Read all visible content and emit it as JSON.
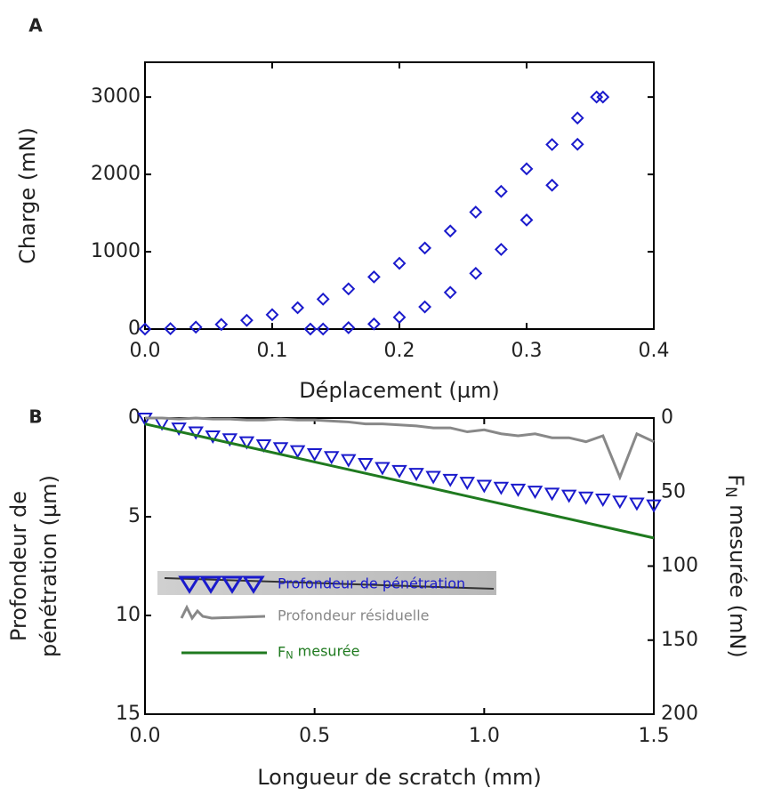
{
  "chart_data": [
    {
      "type": "scatter",
      "panel": "A",
      "x_label": "Déplacement (µm)",
      "y_label": "Charge (mN)",
      "xlim": [
        0,
        0.4
      ],
      "ylim": [
        0,
        3450
      ],
      "xticks": [
        {
          "value": 0,
          "label": "0.0"
        },
        0.1,
        0.2,
        0.3,
        0.4
      ],
      "yticks": [
        0,
        1000,
        2000,
        3000
      ],
      "series": [
        {
          "color": "#1a1acc",
          "marker": "diamond",
          "x": [
            0,
            0.02,
            0.04,
            0.06,
            0.08,
            0.1,
            0.12,
            0.14,
            0.16,
            0.18,
            0.2,
            0.22,
            0.24,
            0.26,
            0.28,
            0.3,
            0.32,
            0.34,
            0.355
          ],
          "values": [
            0,
            5,
            25,
            60,
            113,
            186,
            276,
            387,
            520,
            674,
            850,
            1048,
            1268,
            1512,
            1780,
            2072,
            2386,
            2729,
            3000
          ]
        },
        {
          "color": "#1a1acc",
          "marker": "diamond",
          "x": [
            0.36,
            0.34,
            0.32,
            0.3,
            0.28,
            0.26,
            0.24,
            0.22,
            0.2,
            0.18,
            0.16,
            0.14,
            0.13
          ],
          "values": [
            3000,
            2389,
            1860,
            1410,
            1030,
            720,
            474,
            287,
            153,
            66,
            18,
            1,
            0
          ]
        }
      ]
    },
    {
      "type": "scatter",
      "panel": "B",
      "x_label": "Longueur de scratch (mm)",
      "y_label": [
        "Profondeur de",
        "pénétration (µm)"
      ],
      "y2_label": "FN mesurée (mN)",
      "xlim": [
        0,
        1.5
      ],
      "ylim": [
        0,
        15
      ],
      "y2lim": [
        0,
        200
      ],
      "y_inverted": true,
      "xticks": [
        {
          "value": 0,
          "label": "0.0"
        },
        0.5,
        {
          "value": 1,
          "label": "1.0"
        },
        1.5
      ],
      "yticks": [
        0,
        5,
        10,
        15
      ],
      "y2ticks": [
        0,
        50,
        100,
        150,
        200
      ],
      "series": [
        {
          "name": "Profondeur de pénétration",
          "color": "#1a1acc",
          "marker": "triangle-down",
          "x": [
            0,
            0.05,
            0.1,
            0.15,
            0.2,
            0.25,
            0.3,
            0.35,
            0.4,
            0.45,
            0.5,
            0.55,
            0.6,
            0.65,
            0.7,
            0.75,
            0.8,
            0.85,
            0.9,
            0.95,
            1,
            1.05,
            1.1,
            1.15,
            1.2,
            1.25,
            1.3,
            1.35,
            1.4,
            1.45,
            1.5
          ],
          "values": [
            0,
            0.25,
            0.5,
            0.7,
            0.9,
            1.05,
            1.2,
            1.35,
            1.5,
            1.65,
            1.8,
            1.95,
            2.1,
            2.3,
            2.5,
            2.65,
            2.8,
            2.95,
            3.1,
            3.25,
            3.4,
            3.5,
            3.6,
            3.7,
            3.8,
            3.9,
            4.0,
            4.1,
            4.2,
            4.3,
            4.4
          ]
        },
        {
          "name": "Profondeur résiduelle",
          "color": "#888888",
          "marker": "line",
          "x": [
            0,
            0.05,
            0.1,
            0.15,
            0.2,
            0.25,
            0.3,
            0.35,
            0.4,
            0.45,
            0.5,
            0.55,
            0.6,
            0.65,
            0.7,
            0.75,
            0.8,
            0.85,
            0.9,
            0.95,
            1,
            1.05,
            1.1,
            1.15,
            1.2,
            1.25,
            1.3,
            1.35,
            1.4,
            1.45,
            1.5
          ],
          "values": [
            0,
            0,
            0.05,
            0,
            0.05,
            0.05,
            0.1,
            0.1,
            0.05,
            0.1,
            0.1,
            0.15,
            0.2,
            0.3,
            0.3,
            0.35,
            0.4,
            0.5,
            0.5,
            0.7,
            0.6,
            0.8,
            0.9,
            0.8,
            1.0,
            1.0,
            1.2,
            0.9,
            3.0,
            0.8,
            1.2
          ]
        },
        {
          "name": "FN mesurée",
          "color": "#1f7a1f",
          "marker": "line",
          "axis": "y2",
          "x": [
            0,
            1.5
          ],
          "values": [
            4,
            81
          ]
        }
      ]
    }
  ]
}
